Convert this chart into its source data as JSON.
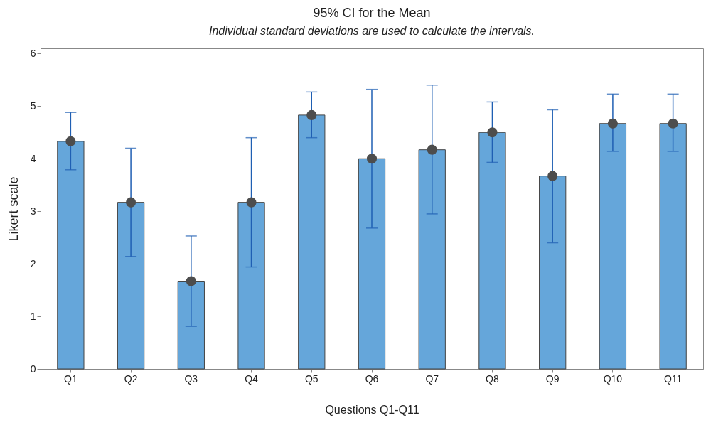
{
  "chart_data": {
    "type": "bar",
    "title": "95% CI for the Mean",
    "subtitle": "Individual standard deviations are used to calculate the intervals.",
    "xlabel": "Questions Q1-Q11",
    "ylabel": "Likert scale",
    "categories": [
      "Q1",
      "Q2",
      "Q3",
      "Q4",
      "Q5",
      "Q6",
      "Q7",
      "Q8",
      "Q9",
      "Q10",
      "Q11"
    ],
    "series": [
      {
        "color": "#65a6da",
        "values": [
          4.33,
          3.17,
          1.67,
          3.17,
          4.83,
          4.0,
          4.17,
          4.5,
          3.67,
          4.67,
          4.67
        ]
      },
      {
        "type": "scatter",
        "color": "#4d4d4d",
        "x": [
          "Q1",
          "Q2",
          "Q3",
          "Q4",
          "Q5",
          "Q6",
          "Q7",
          "Q8",
          "Q9",
          "Q10",
          "Q11"
        ],
        "values": [
          4.33,
          3.17,
          1.67,
          3.17,
          4.83,
          4.0,
          4.17,
          4.5,
          3.67,
          4.67,
          4.67
        ],
        "errors": [
          [
            3.79,
            4.88
          ],
          [
            2.14,
            4.2
          ],
          [
            0.81,
            2.53
          ],
          [
            1.94,
            4.4
          ],
          [
            4.4,
            5.27
          ],
          [
            2.68,
            5.32
          ],
          [
            2.95,
            5.4
          ],
          [
            3.93,
            5.08
          ],
          [
            2.4,
            4.93
          ],
          [
            4.14,
            5.23
          ],
          [
            4.14,
            5.23
          ]
        ]
      }
    ],
    "ylim": [
      0,
      6.1
    ],
    "yticks": [
      0,
      1,
      2,
      3,
      4,
      5,
      6
    ],
    "marker": "circle"
  }
}
